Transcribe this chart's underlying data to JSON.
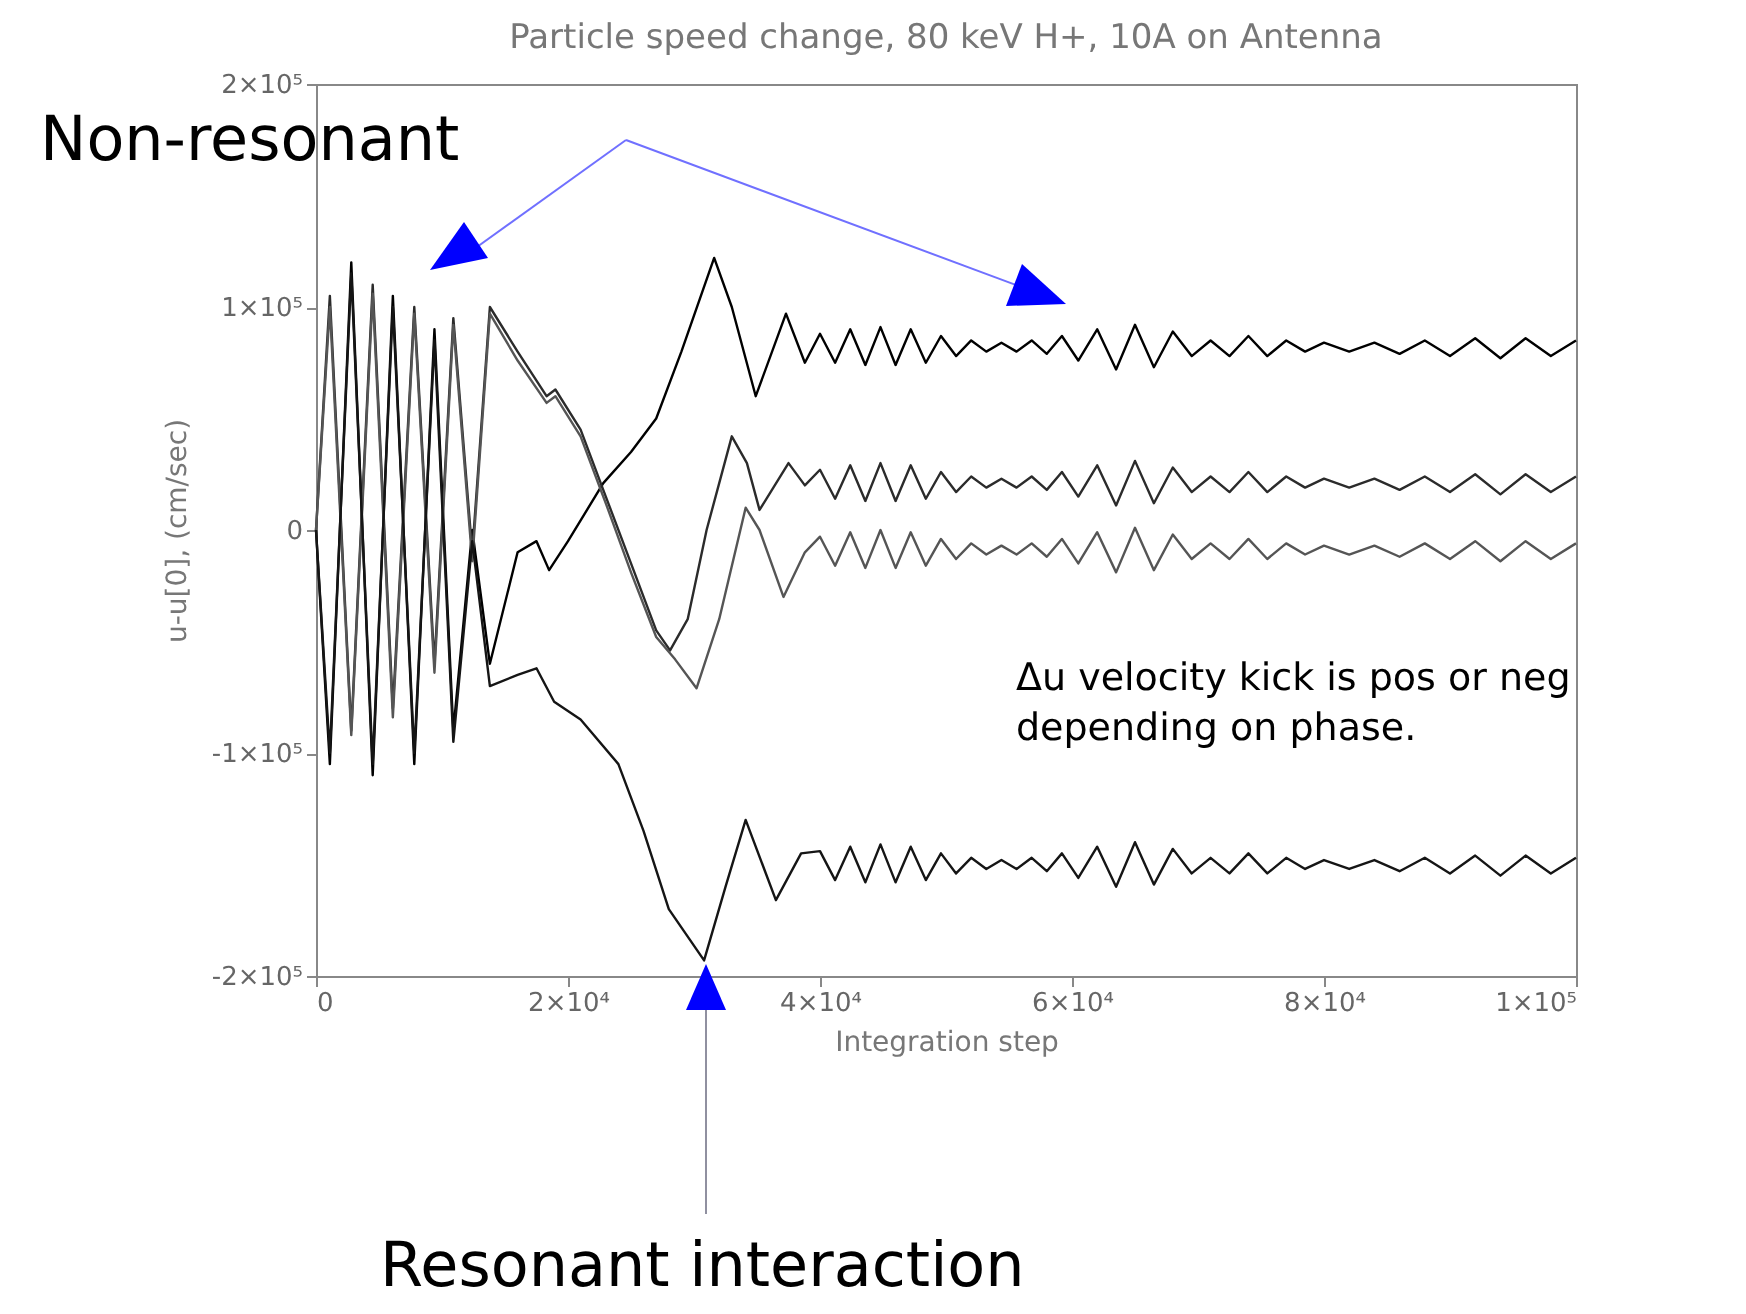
{
  "chart_data": {
    "type": "line",
    "title": "Particle speed change, 80 keV H+, 10A on Antenna",
    "xlabel": "Integration step",
    "ylabel": "u-u[0], (cm/sec)",
    "xlim": [
      0,
      100000
    ],
    "ylim": [
      -200000,
      200000
    ],
    "xticks": [
      0,
      {
        "value": 20000,
        "label": "2×10⁴"
      },
      {
        "value": 40000,
        "label": "4×10⁴"
      },
      {
        "value": 60000,
        "label": "6×10⁴"
      },
      {
        "value": 80000,
        "label": "8×10⁴"
      },
      {
        "value": 100000,
        "label": "1×10⁵"
      }
    ],
    "yticks": [
      {
        "value": -200000,
        "label": "-2×10⁵"
      },
      {
        "value": -100000,
        "label": "-1×10⁵"
      },
      0,
      {
        "value": 100000,
        "label": "1×10⁵"
      },
      {
        "value": 200000,
        "label": "2×10⁵"
      }
    ],
    "grid": false,
    "legend": false,
    "marker": "none",
    "line_style": "solid",
    "annotations": [
      "Non-resonant",
      "Resonant interaction",
      "Δu velocity kick is pos or neg depending on phase."
    ],
    "series": [
      {
        "color": "#000000",
        "x": [
          0,
          1100,
          2800,
          4500,
          6100,
          7800,
          9400,
          10900,
          12400,
          13800,
          16000,
          17500,
          18500,
          20000,
          22800,
          25000,
          27000,
          29000,
          31600,
          33000,
          34900,
          37300,
          38800,
          40000,
          41200,
          42400,
          43600,
          44800,
          46000,
          47200,
          48400,
          49600,
          50800,
          52000,
          53200,
          54400,
          55600,
          56800,
          58000,
          59200,
          60500,
          62000,
          63500,
          65000,
          66500,
          68000,
          69500,
          71000,
          72500,
          74000,
          75500,
          77000,
          78500,
          80000,
          82000,
          84000,
          86000,
          88000,
          90000,
          92000,
          94000,
          96000,
          98000,
          100000
        ],
        "values": [
          0,
          -105000,
          120000,
          -110000,
          105000,
          -105000,
          90000,
          -90000,
          0,
          -60000,
          -10000,
          -5000,
          -18000,
          -5000,
          21000,
          35000,
          50000,
          80000,
          122000,
          100000,
          60000,
          97000,
          75000,
          88000,
          75000,
          90000,
          74000,
          91000,
          74000,
          90000,
          75000,
          87000,
          78000,
          85000,
          80000,
          84000,
          80000,
          85000,
          79000,
          87000,
          76000,
          90000,
          72000,
          92000,
          73000,
          89000,
          78000,
          85000,
          78000,
          87000,
          78000,
          85000,
          80000,
          84000,
          80000,
          84000,
          79000,
          85000,
          78000,
          86000,
          77000,
          86000,
          78000,
          85000
        ]
      },
      {
        "color": "#2b2b2b",
        "x": [
          0,
          1100,
          2800,
          4500,
          6100,
          7800,
          9400,
          10900,
          12400,
          13800,
          16000,
          18300,
          19000,
          21000,
          23000,
          25000,
          27000,
          28100,
          29500,
          31000,
          33000,
          34200,
          35200,
          37500,
          38800,
          40000,
          41200,
          42400,
          43600,
          44800,
          46000,
          47200,
          48400,
          49600,
          50800,
          52000,
          53200,
          54400,
          55600,
          56800,
          58000,
          59200,
          60500,
          62000,
          63500,
          65000,
          66500,
          68000,
          69500,
          71000,
          72500,
          74000,
          75500,
          77000,
          78500,
          80000,
          82000,
          84000,
          86000,
          88000,
          90000,
          92000,
          94000,
          96000,
          98000,
          100000
        ],
        "values": [
          0,
          105000,
          -90000,
          110000,
          -80000,
          100000,
          -60000,
          95000,
          -10000,
          100000,
          80000,
          60000,
          63000,
          45000,
          15000,
          -15000,
          -45000,
          -54000,
          -40000,
          0,
          42000,
          30000,
          9000,
          30000,
          20000,
          27000,
          14000,
          29000,
          13000,
          30000,
          13000,
          29000,
          14000,
          26000,
          17000,
          24000,
          19000,
          23000,
          19000,
          24000,
          18000,
          26000,
          15000,
          29000,
          11000,
          31000,
          12000,
          28000,
          17000,
          24000,
          17000,
          26000,
          17000,
          24000,
          19000,
          23000,
          19000,
          23000,
          18000,
          24000,
          17000,
          25000,
          16000,
          25000,
          17000,
          24000
        ]
      },
      {
        "color": "#555555",
        "x": [
          0,
          1100,
          2800,
          4500,
          6100,
          7800,
          9400,
          10900,
          12400,
          13800,
          16000,
          18300,
          19000,
          21000,
          23000,
          25000,
          27000,
          28500,
          30200,
          32000,
          34100,
          35200,
          37100,
          38800,
          40000,
          41200,
          42400,
          43600,
          44800,
          46000,
          47200,
          48400,
          49600,
          50800,
          52000,
          53200,
          54400,
          55600,
          56800,
          58000,
          59200,
          60500,
          62000,
          63500,
          65000,
          66500,
          68000,
          69500,
          71000,
          72500,
          74000,
          75500,
          77000,
          78500,
          80000,
          82000,
          84000,
          86000,
          88000,
          90000,
          92000,
          94000,
          96000,
          98000,
          100000
        ],
        "values": [
          0,
          100000,
          -92000,
          106000,
          -84000,
          97000,
          -64000,
          92000,
          -14000,
          97000,
          76000,
          57000,
          60000,
          42000,
          12000,
          -19000,
          -48000,
          -58000,
          -71000,
          -40000,
          10000,
          0,
          -30000,
          -10000,
          -3000,
          -16000,
          -1000,
          -17000,
          0,
          -17000,
          -1000,
          -16000,
          -4000,
          -13000,
          -6000,
          -11000,
          -7000,
          -11000,
          -6000,
          -12000,
          -4000,
          -15000,
          -1000,
          -19000,
          1000,
          -18000,
          -2000,
          -13000,
          -6000,
          -13000,
          -4000,
          -13000,
          -6000,
          -11000,
          -7000,
          -11000,
          -7000,
          -12000,
          -6000,
          -13000,
          -5000,
          -14000,
          -5000,
          -13000,
          -6000
        ]
      },
      {
        "color": "#151515",
        "x": [
          0,
          1100,
          2800,
          4500,
          6100,
          7800,
          9400,
          10900,
          12400,
          13800,
          16000,
          17500,
          18900,
          21000,
          24000,
          26000,
          28000,
          30800,
          32500,
          34100,
          36500,
          38500,
          40000,
          41200,
          42400,
          43600,
          44800,
          46000,
          47200,
          48400,
          49600,
          50800,
          52000,
          53200,
          54400,
          55600,
          56800,
          58000,
          59200,
          60500,
          62000,
          63500,
          65000,
          66500,
          68000,
          69500,
          71000,
          72500,
          74000,
          75500,
          77000,
          78500,
          80000,
          82000,
          84000,
          86000,
          88000,
          90000,
          92000,
          94000,
          96000,
          98000,
          100000
        ],
        "values": [
          0,
          -100000,
          115000,
          -105000,
          100000,
          -100000,
          85000,
          -95000,
          -5000,
          -70000,
          -65000,
          -62000,
          -77000,
          -85000,
          -105000,
          -135000,
          -170000,
          -193000,
          -160000,
          -130000,
          -166000,
          -145000,
          -144000,
          -157000,
          -142000,
          -158000,
          -141000,
          -158000,
          -142000,
          -157000,
          -145000,
          -154000,
          -147000,
          -152000,
          -148000,
          -152000,
          -147000,
          -153000,
          -145000,
          -156000,
          -142000,
          -160000,
          -140000,
          -159000,
          -143000,
          -154000,
          -147000,
          -154000,
          -145000,
          -154000,
          -147000,
          -152000,
          -148000,
          -152000,
          -148000,
          -153000,
          -147000,
          -154000,
          -146000,
          -155000,
          -146000,
          -154000,
          -147000
        ]
      }
    ]
  }
}
